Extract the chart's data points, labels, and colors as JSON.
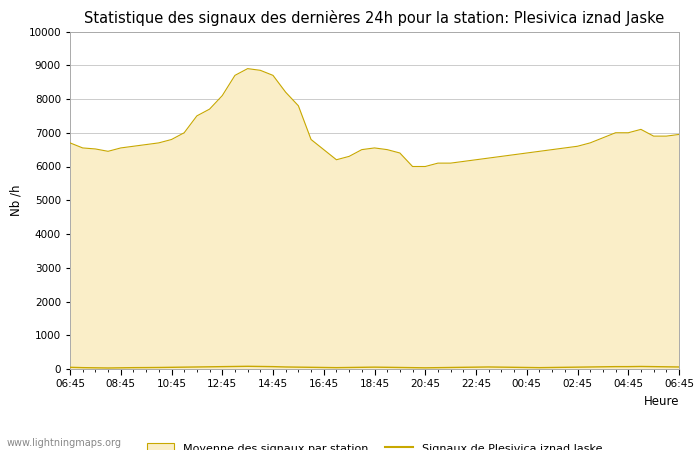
{
  "title": "Statistique des signaux des dernières 24h pour la station: Plesivica iznad Jaske",
  "xlabel": "Heure",
  "ylabel": "Nb /h",
  "ylim": [
    0,
    10000
  ],
  "yticks": [
    0,
    1000,
    2000,
    3000,
    4000,
    5000,
    6000,
    7000,
    8000,
    9000,
    10000
  ],
  "xtick_labels": [
    "06:45",
    "08:45",
    "10:45",
    "12:45",
    "14:45",
    "16:45",
    "18:45",
    "20:45",
    "22:45",
    "00:45",
    "02:45",
    "04:45",
    "06:45"
  ],
  "fill_color": "#FAEEC8",
  "fill_edge_color": "#C8A800",
  "line_color": "#C8A800",
  "background_color": "#ffffff",
  "grid_color": "#cccccc",
  "watermark": "www.lightningmaps.org",
  "legend_fill_label": "Moyenne des signaux par station",
  "legend_line_label": "Signaux de Plesivica iznad Jaske",
  "x_values": [
    0,
    1,
    2,
    3,
    4,
    5,
    6,
    7,
    8,
    9,
    10,
    11,
    12,
    13,
    14,
    15,
    16,
    17,
    18,
    19,
    20,
    21,
    22,
    23,
    24,
    25,
    26,
    27,
    28,
    29,
    30,
    31,
    32,
    33,
    34,
    35,
    36,
    37,
    38,
    39,
    40,
    41,
    42,
    43,
    44,
    45,
    46,
    47,
    48
  ],
  "fill_values": [
    6700,
    6550,
    6520,
    6450,
    6550,
    6600,
    6650,
    6700,
    6800,
    7000,
    7500,
    7700,
    8100,
    8700,
    8900,
    8850,
    8700,
    8200,
    7800,
    6800,
    6500,
    6200,
    6300,
    6500,
    6550,
    6500,
    6400,
    6000,
    6000,
    6100,
    6100,
    6150,
    6200,
    6250,
    6300,
    6350,
    6400,
    6450,
    6500,
    6550,
    6600,
    6700,
    6850,
    7000,
    7000,
    7100,
    6900,
    6900,
    6950
  ],
  "line_values": [
    50,
    40,
    35,
    30,
    35,
    40,
    42,
    45,
    50,
    55,
    60,
    65,
    70,
    75,
    80,
    75,
    70,
    60,
    55,
    50,
    45,
    40,
    45,
    50,
    55,
    50,
    45,
    40,
    35,
    40,
    45,
    50,
    55,
    60,
    55,
    50,
    45,
    40,
    45,
    50,
    55,
    60,
    65,
    70,
    70,
    75,
    70,
    65,
    60
  ],
  "title_fontsize": 10.5,
  "axis_fontsize": 8.5,
  "tick_fontsize": 7.5
}
